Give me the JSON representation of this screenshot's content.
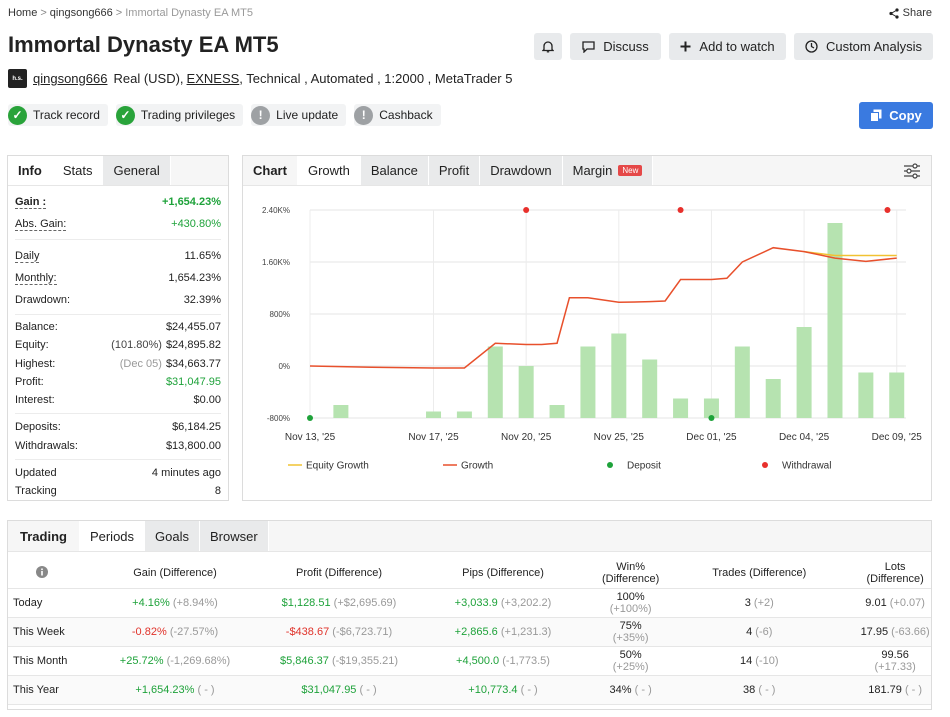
{
  "breadcrumb": {
    "home": "Home",
    "user": "qingsong666",
    "current": "Immortal Dynasty EA MT5"
  },
  "share_label": "Share",
  "title": "Immortal Dynasty EA MT5",
  "actions": {
    "discuss": "Discuss",
    "watch": "Add to watch",
    "custom": "Custom Analysis"
  },
  "author": {
    "avatar_text": "h.s.",
    "username": "qingsong666",
    "account": "Real (USD),",
    "broker": "EXNESS",
    "details": ", Technical , Automated , 1:2000 , MetaTrader 5"
  },
  "badges": [
    "Track record",
    "Trading privileges",
    "Live update",
    "Cashback"
  ],
  "copy_label": "Copy",
  "left_tabs": [
    "Info",
    "Stats",
    "General"
  ],
  "stats": {
    "gain_label": "Gain :",
    "gain": "+1,654.23%",
    "abs_gain_label": "Abs. Gain:",
    "abs_gain": "+430.80%",
    "daily_label": "Daily",
    "daily": "11.65%",
    "monthly_label": "Monthly:",
    "monthly": "1,654.23%",
    "drawdown_label": "Drawdown:",
    "drawdown": "32.39%",
    "balance_label": "Balance:",
    "balance": "$24,455.07",
    "equity_label": "Equity:",
    "equity_pct": "(101.80%)",
    "equity": "$24,895.82",
    "highest_label": "Highest:",
    "highest_date": "(Dec 05)",
    "highest": "$34,663.77",
    "profit_label": "Profit:",
    "profit": "$31,047.95",
    "interest_label": "Interest:",
    "interest": "$0.00",
    "deposits_label": "Deposits:",
    "deposits": "$6,184.25",
    "withdrawals_label": "Withdrawals:",
    "withdrawals": "$13,800.00",
    "updated_label": "Updated",
    "updated": "4 minutes ago",
    "tracking_label": "Tracking",
    "tracking": "8"
  },
  "chart_tabs": {
    "chart": "Chart",
    "growth": "Growth",
    "balance": "Balance",
    "profit": "Profit",
    "drawdown": "Drawdown",
    "margin": "Margin",
    "new": "New"
  },
  "chart_data": {
    "type": "bar",
    "y_ticks": [
      "2.40K%",
      "1.60K%",
      "800%",
      "0%",
      "-800%"
    ],
    "y_tick_values": [
      2400,
      1600,
      800,
      0,
      -800
    ],
    "ylim": [
      -800,
      2400
    ],
    "x_ticks": [
      "Nov 13, '25",
      "Nov 17, '25",
      "Nov 20, '25",
      "Nov 25, '25",
      "Dec 01, '25",
      "Dec 04, '25",
      "Dec 09, '25"
    ],
    "x_tick_positions": [
      0,
      4,
      7,
      10,
      13,
      16,
      19
    ],
    "bar_values": [
      -600,
      null,
      null,
      -700,
      -700,
      300,
      0,
      -600,
      300,
      500,
      100,
      -500,
      -500,
      300,
      -200,
      600,
      2200,
      -100,
      -100
    ],
    "bar_x": [
      1,
      2,
      3,
      4,
      5,
      6,
      7,
      8,
      9,
      10,
      11,
      12,
      13,
      14,
      15,
      16,
      17,
      18,
      19
    ],
    "growth_x": [
      0,
      1,
      2,
      3,
      4,
      5,
      6,
      7,
      7.5,
      8,
      8.4,
      9,
      10,
      11,
      11.5,
      12,
      13,
      13.5,
      14,
      15,
      16,
      17,
      18,
      19
    ],
    "growth_y": [
      0,
      -10,
      -20,
      -25,
      -30,
      -30,
      350,
      330,
      330,
      350,
      1050,
      1050,
      980,
      990,
      1000,
      1330,
      1330,
      1350,
      1600,
      1820,
      1760,
      1660,
      1610,
      1660
    ],
    "equity_x": [
      16,
      17,
      18,
      19
    ],
    "equity_y": [
      1760,
      1700,
      1700,
      1700
    ],
    "deposit_x": [
      0,
      13
    ],
    "withdrawal_x": [
      7,
      12,
      18.7
    ],
    "legend": [
      "Equity Growth",
      "Growth",
      "Deposit",
      "Withdrawal"
    ],
    "colors": {
      "equity": "#f1c232",
      "growth": "#e8502c",
      "deposit": "#1ea23a",
      "withdrawal": "#e8302c",
      "bar": "#b6e3b0"
    }
  },
  "bottom_tabs": [
    "Trading",
    "Periods",
    "Goals",
    "Browser"
  ],
  "table": {
    "headers": [
      "Gain (Difference)",
      "Profit (Difference)",
      "Pips (Difference)",
      "Win% (Difference)",
      "Trades (Difference)",
      "Lots (Difference)"
    ],
    "rows": [
      {
        "label": "Today",
        "gain": "+4.16%",
        "gain_d": "(+8.94%)",
        "profit": "$1,128.51",
        "profit_d": "(+$2,695.69)",
        "pips": "+3,033.9",
        "pips_d": "(+3,202.2)",
        "win": "100%",
        "win_d": "(+100%)",
        "trades": "3",
        "trades_d": "(+2)",
        "lots": "9.01",
        "lots_d": "(+0.07)"
      },
      {
        "label": "This Week",
        "gain": "-0.82%",
        "gain_d": "(-27.57%)",
        "profit": "-$438.67",
        "profit_d": "(-$6,723.71)",
        "pips": "+2,865.6",
        "pips_d": "(+1,231.3)",
        "win": "75%",
        "win_d": "(+35%)",
        "trades": "4",
        "trades_d": "(-6)",
        "lots": "17.95",
        "lots_d": "(-63.66)"
      },
      {
        "label": "This Month",
        "gain": "+25.72%",
        "gain_d": "(-1,269.68%)",
        "profit": "$5,846.37",
        "profit_d": "(-$19,355.21)",
        "pips": "+4,500.0",
        "pips_d": "(-1,773.5)",
        "win": "50%",
        "win_d": "(+25%)",
        "trades": "14",
        "trades_d": "(-10)",
        "lots": "99.56",
        "lots_d": "(+17.33)"
      },
      {
        "label": "This Year",
        "gain": "+1,654.23%",
        "gain_d": "( - )",
        "profit": "$31,047.95",
        "profit_d": "( - )",
        "pips": "+10,773.4",
        "pips_d": "( - )",
        "win": "34%",
        "win_d": "( - )",
        "trades": "38",
        "trades_d": "( - )",
        "lots": "181.79",
        "lots_d": "( - )"
      }
    ]
  }
}
